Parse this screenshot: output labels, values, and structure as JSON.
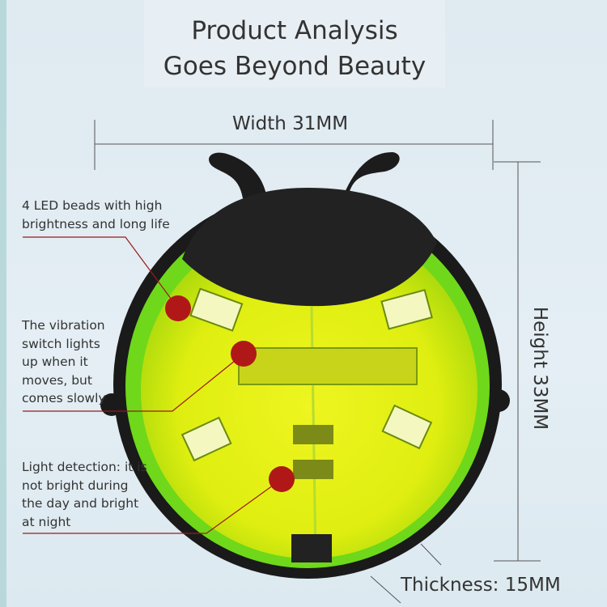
{
  "title": {
    "line1": "Product Analysis",
    "line2": "Goes Beyond Beauty"
  },
  "dimensions": {
    "width": "Width 31MM",
    "height": "Height 33MM",
    "thickness": "Thickness: 15MM"
  },
  "callouts": [
    {
      "text": "4 LED beads with high brightness and long life"
    },
    {
      "text": "The vibration switch lights up when it moves, but comes slowly"
    },
    {
      "text": "Light detection: it is not bright during the day and bright at night"
    }
  ],
  "colors": {
    "marker": "#b01818",
    "shell_green": "#7ee81a",
    "lens_yellow": "#e3f00f",
    "body_black": "#1a1a1a"
  }
}
